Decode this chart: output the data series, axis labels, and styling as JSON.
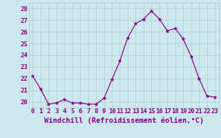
{
  "hours": [
    0,
    1,
    2,
    3,
    4,
    5,
    6,
    7,
    8,
    9,
    10,
    11,
    12,
    13,
    14,
    15,
    16,
    17,
    18,
    19,
    20,
    21,
    22,
    23
  ],
  "values": [
    22.2,
    21.1,
    19.8,
    19.9,
    20.2,
    19.9,
    19.9,
    19.8,
    19.8,
    20.3,
    21.9,
    23.5,
    25.5,
    26.7,
    27.1,
    27.8,
    27.1,
    26.1,
    26.3,
    25.4,
    23.9,
    22.0,
    20.5,
    20.4
  ],
  "line_color": "#880088",
  "marker": "*",
  "marker_size": 3.5,
  "bg_color": "#cce8ee",
  "grid_color": "#aacccc",
  "xlabel": "Windchill (Refroidissement éolien,°C)",
  "ylim": [
    19.5,
    28.5
  ],
  "yticks": [
    20,
    21,
    22,
    23,
    24,
    25,
    26,
    27,
    28
  ],
  "xticks": [
    0,
    1,
    2,
    3,
    4,
    5,
    6,
    7,
    8,
    9,
    10,
    11,
    12,
    13,
    14,
    15,
    16,
    17,
    18,
    19,
    20,
    21,
    22,
    23
  ],
  "label_color": "#880088",
  "tick_fontsize": 6.5,
  "xlabel_fontsize": 7.5
}
